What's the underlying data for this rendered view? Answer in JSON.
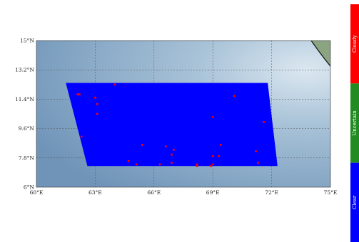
{
  "map": {
    "extent": {
      "lon": [
        60,
        75
      ],
      "lat": [
        6,
        15
      ]
    },
    "x_ticks": [
      {
        "value": 60,
        "label": "60°E"
      },
      {
        "value": 63,
        "label": "63°E"
      },
      {
        "value": 66,
        "label": "66°E"
      },
      {
        "value": 69,
        "label": "69°E"
      },
      {
        "value": 72,
        "label": "72°E"
      },
      {
        "value": 75,
        "label": "75°E"
      }
    ],
    "y_ticks": [
      {
        "value": 15,
        "label": "15°N"
      },
      {
        "value": 13.2,
        "label": "13.2°N"
      },
      {
        "value": 11.4,
        "label": "11.4°N"
      },
      {
        "value": 9.6,
        "label": "9.6°N"
      },
      {
        "value": 7.8,
        "label": "7.8°N"
      },
      {
        "value": 6,
        "label": "6°N"
      }
    ],
    "grid": true,
    "colors": {
      "ocean_light": "#cfe0ec",
      "ocean_mid": "#8fb0cc",
      "ocean_dark": "#6f94b8",
      "clear": "#0000ff",
      "cloudy": "#ff0000",
      "uncertain": "#228b22",
      "land": "#7f9a76"
    },
    "swath": [
      {
        "lon": 61.5,
        "lat": 12.4
      },
      {
        "lon": 71.8,
        "lat": 12.4
      },
      {
        "lon": 72.3,
        "lat": 7.3
      },
      {
        "lon": 62.6,
        "lat": 7.3
      }
    ],
    "cloudy_points": [
      {
        "lon": 62.1,
        "lat": 11.7
      },
      {
        "lon": 62.2,
        "lat": 11.7
      },
      {
        "lon": 64.0,
        "lat": 12.3
      },
      {
        "lon": 63.0,
        "lat": 11.5
      },
      {
        "lon": 63.1,
        "lat": 11.1
      },
      {
        "lon": 63.1,
        "lat": 10.5
      },
      {
        "lon": 62.3,
        "lat": 9.1
      },
      {
        "lon": 70.1,
        "lat": 11.6
      },
      {
        "lon": 71.6,
        "lat": 10.0
      },
      {
        "lon": 69.0,
        "lat": 10.3
      },
      {
        "lon": 65.4,
        "lat": 8.6
      },
      {
        "lon": 66.6,
        "lat": 8.5
      },
      {
        "lon": 67.0,
        "lat": 8.3
      },
      {
        "lon": 66.9,
        "lat": 8.0
      },
      {
        "lon": 69.4,
        "lat": 8.6
      },
      {
        "lon": 71.2,
        "lat": 8.2
      },
      {
        "lon": 69.0,
        "lat": 7.9
      },
      {
        "lon": 69.3,
        "lat": 7.9
      },
      {
        "lon": 64.7,
        "lat": 7.6
      },
      {
        "lon": 65.1,
        "lat": 7.4
      },
      {
        "lon": 66.3,
        "lat": 7.4
      },
      {
        "lon": 66.9,
        "lat": 7.5
      },
      {
        "lon": 68.2,
        "lat": 7.4
      },
      {
        "lon": 68.2,
        "lat": 7.3
      },
      {
        "lon": 69.0,
        "lat": 7.4
      },
      {
        "lon": 68.9,
        "lat": 7.3
      },
      {
        "lon": 71.3,
        "lat": 7.5
      }
    ]
  },
  "legend": [
    {
      "label": "Cloudy",
      "color": "#ff0000"
    },
    {
      "label": "Uncertain",
      "color": "#228b22"
    },
    {
      "label": "Clear",
      "color": "#0000ff"
    }
  ]
}
